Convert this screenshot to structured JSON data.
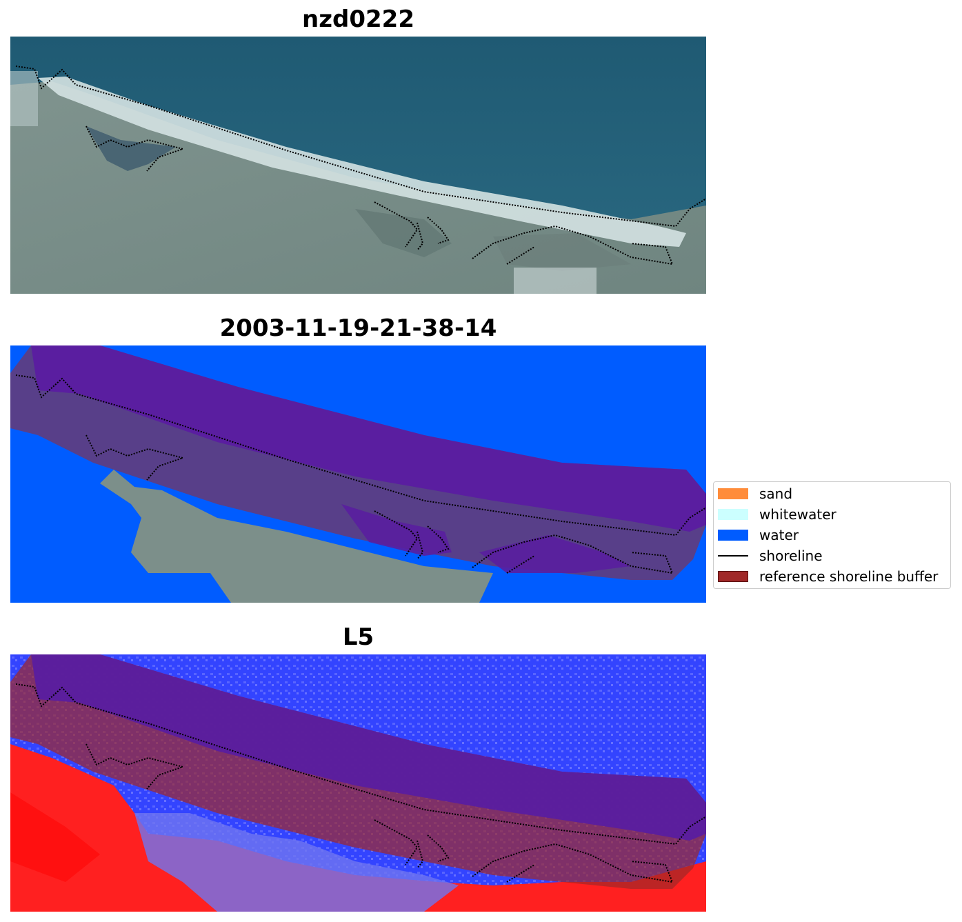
{
  "panels": [
    {
      "title": "nzd0222",
      "kind": "rgb"
    },
    {
      "title": "2003-11-19-21-38-14",
      "kind": "classification"
    },
    {
      "title": "L5",
      "kind": "index"
    }
  ],
  "legend": {
    "items": [
      {
        "label": "sand",
        "type": "patch",
        "color": "#ff8c3a"
      },
      {
        "label": "whitewater",
        "type": "patch",
        "color": "#ccffff"
      },
      {
        "label": "water",
        "type": "patch",
        "color": "#005cff"
      },
      {
        "label": "shoreline",
        "type": "line",
        "color": "#000000"
      },
      {
        "label": "reference shoreline buffer",
        "type": "patch",
        "color": "#a02828"
      }
    ]
  },
  "colors": {
    "sea": "#2f6379",
    "land": "#7c8f8a",
    "beach": "#d8e6e6",
    "water_class": "#005cff",
    "buffer_overlay": "#a02828",
    "index_positive": "#ff0000",
    "index_negative": "#3344ff"
  }
}
